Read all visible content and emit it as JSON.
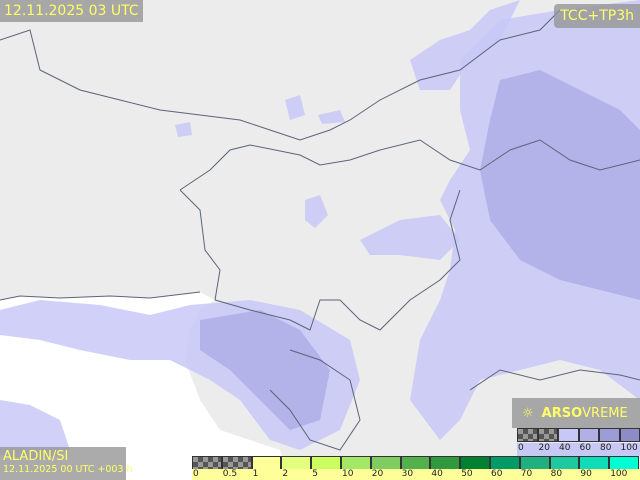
{
  "header": {
    "valid_time": "12.11.2025 03 UTC",
    "product": "TCC+TP3h"
  },
  "footer": {
    "model": "ALADIN/SI",
    "run": "12.11.2025 00 UTC +003 h"
  },
  "brand": {
    "logo_icon": "sun-cloud-icon",
    "name_bold": "ARSO",
    "name_light": "VREME"
  },
  "colors": {
    "label_text": "#ffff66",
    "cloud": "#c8c8f8",
    "land": "#ececec",
    "sea": "#ffffff",
    "border": "#5a6478"
  },
  "cloud_legend": {
    "unit": "%",
    "ticks": [
      "0",
      "20",
      "40",
      "60",
      "80",
      "100"
    ],
    "colors": [
      "checker",
      "checker",
      "#c8c8f8",
      "#b0b0e6",
      "#9c9cd6",
      "#8c8cc8"
    ]
  },
  "precip_legend": {
    "ticks": [
      "0",
      "0.5",
      "1",
      "2",
      "5",
      "10",
      "20",
      "30",
      "40",
      "50",
      "60",
      "70",
      "80",
      "90",
      "100"
    ],
    "colors": [
      "checker",
      "checker",
      "#ffff99",
      "#e2ff80",
      "#ccff60",
      "#a2e866",
      "#80cc60",
      "#52b04e",
      "#30983e",
      "#008032",
      "#009a66",
      "#20b080",
      "#20c8a0",
      "#10dcb8",
      "#00ffd2"
    ]
  }
}
